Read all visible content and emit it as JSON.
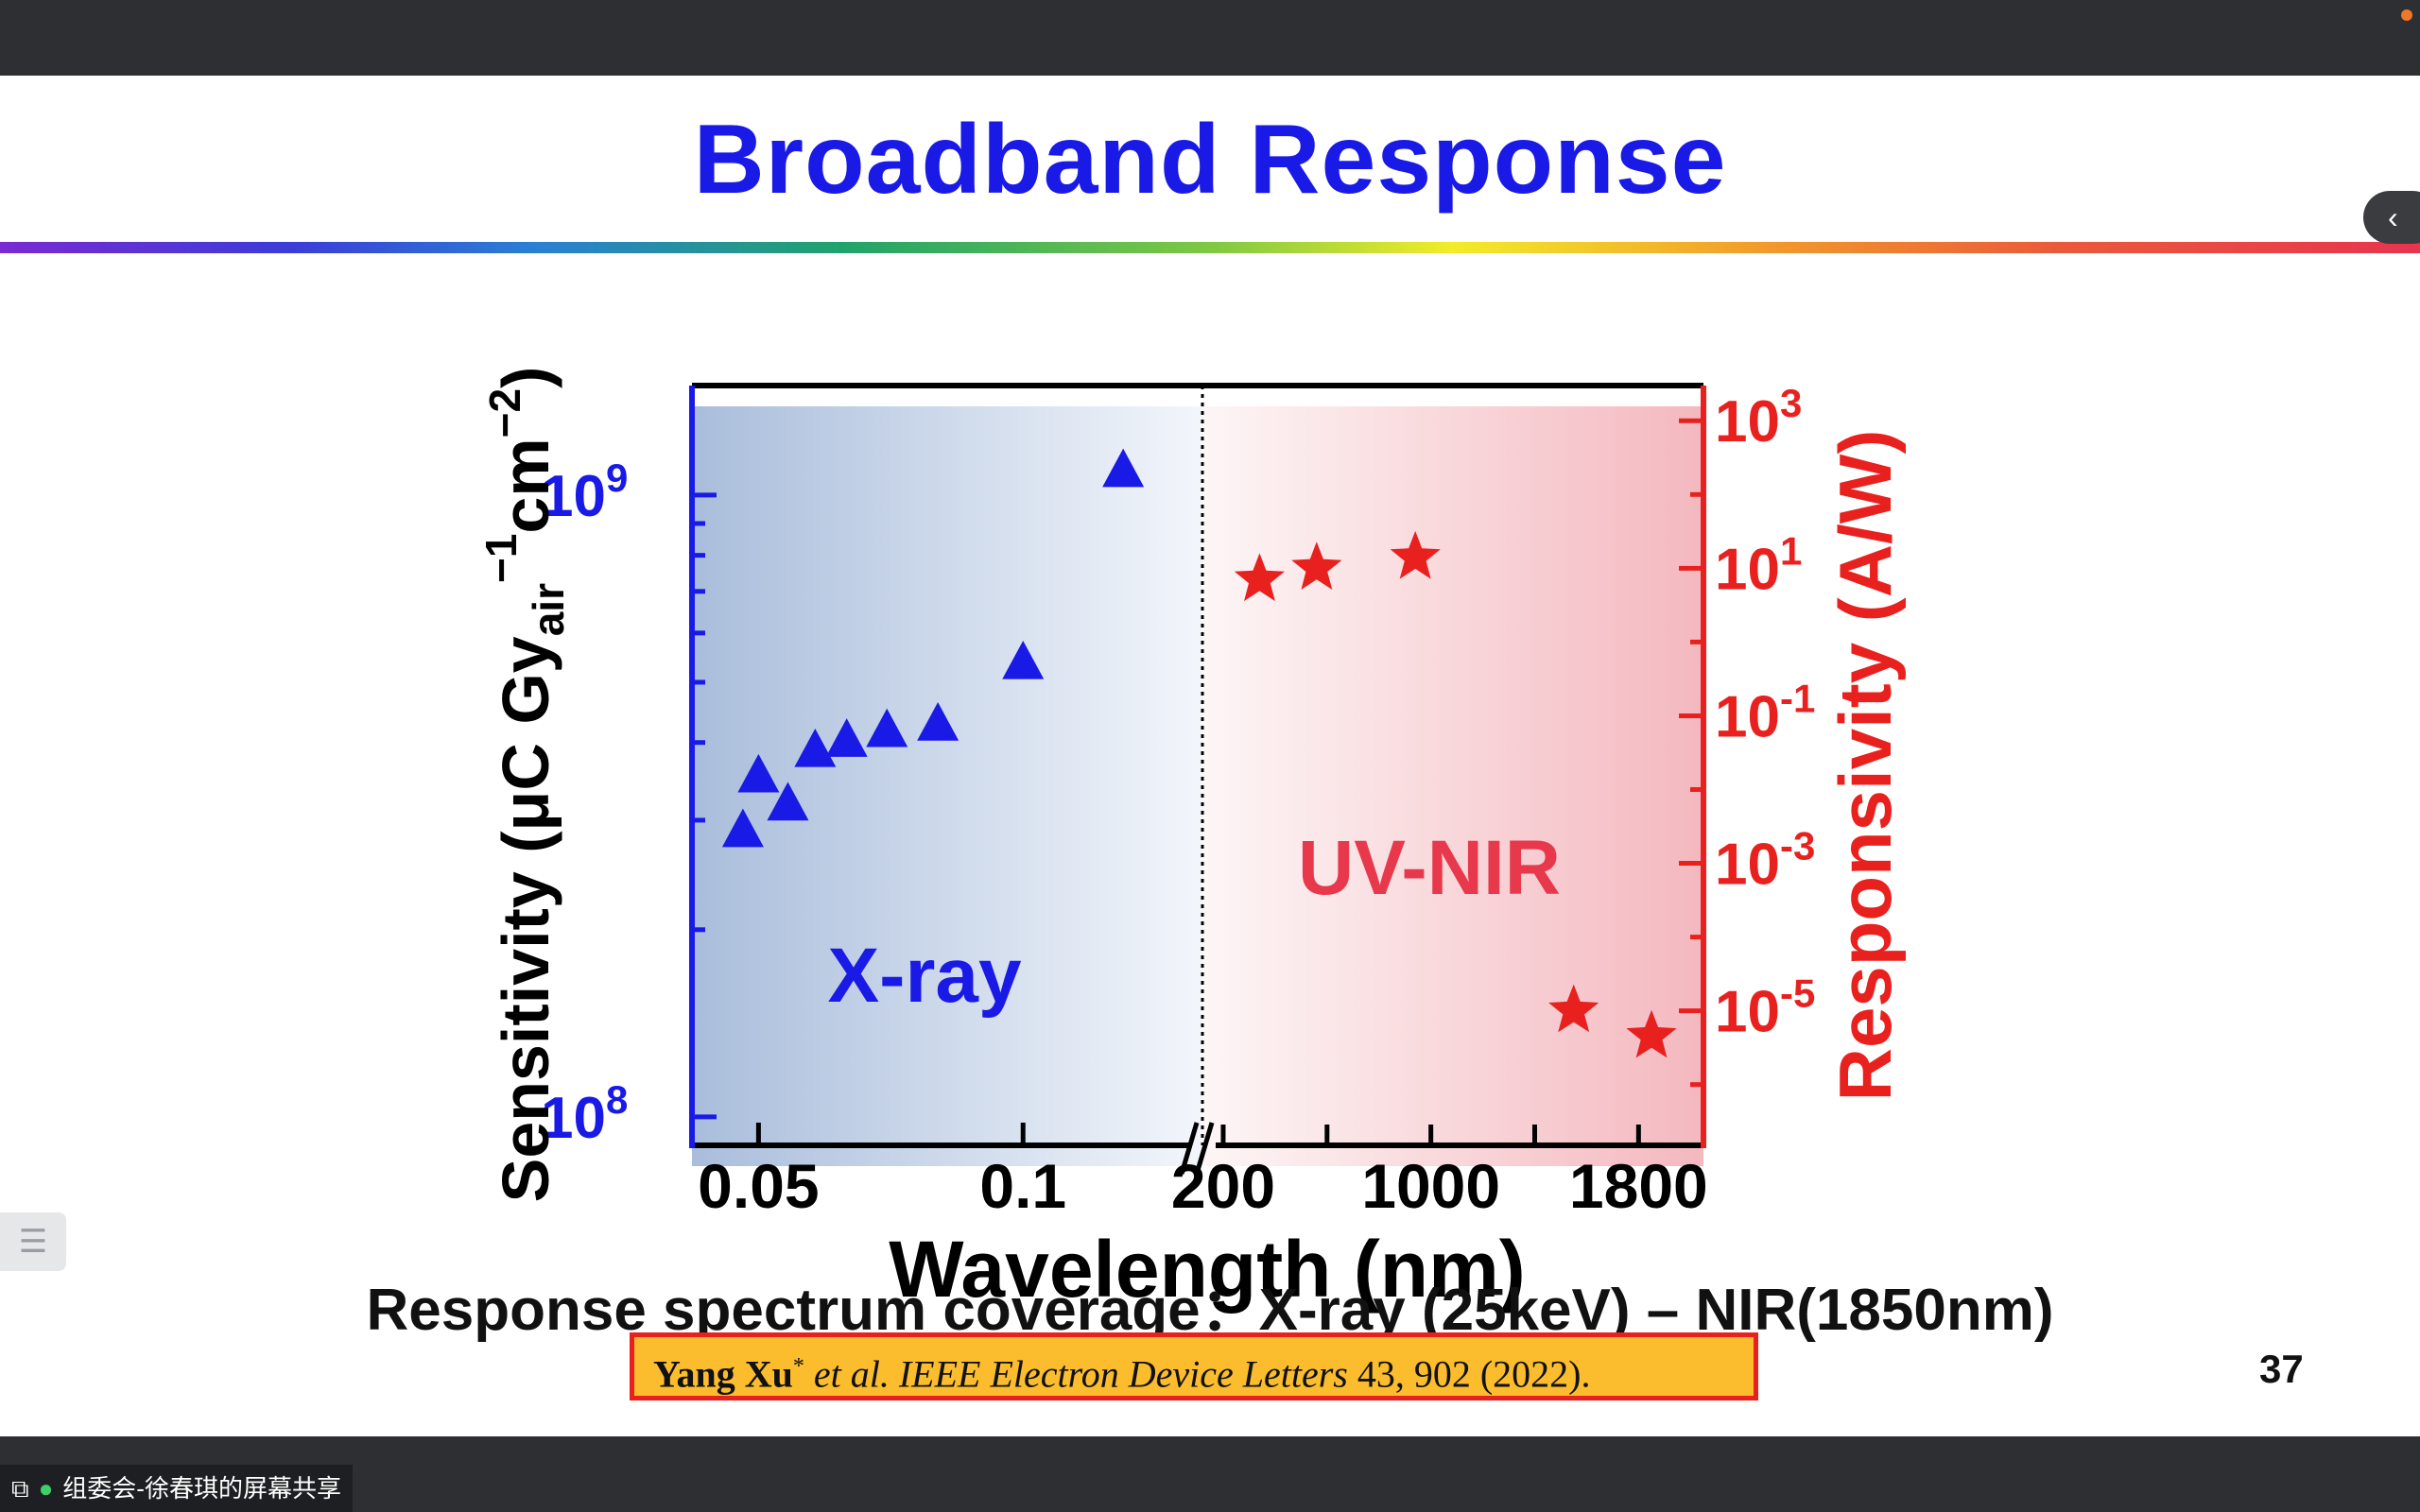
{
  "slide": {
    "title": "Broadband Response",
    "caption": "Response spectrum coverage：X-ray (25keV) – NIR(1850nm)",
    "reference": {
      "author": "Yang Xu",
      "star": "*",
      "rest_italic": " et al.  IEEE Electron Device Letters",
      "rest_plain": " 43, 902 (2022)."
    },
    "page_number": "37"
  },
  "screen_share": {
    "label": "组委会-徐春琪的屏幕共享"
  },
  "colors": {
    "title": "#1a1ae6",
    "left_axis": "#1a1ae6",
    "right_axis": "#e8211f"
  },
  "icons": {
    "share": "screen-share-icon",
    "mic": "microphone-icon",
    "side": "chevron-left-icon",
    "list": "list-icon"
  },
  "chart_data": {
    "type": "scatter",
    "xlabel": "Wavelength (nm)",
    "ylabel_left": "Sensitivity (μC Gyair−1cm−2)",
    "ylabel_right": "Responsivity (A/W)",
    "x_tick_labels": [
      "0.05",
      "0.1",
      "200",
      "1000",
      "1800"
    ],
    "left_axis": {
      "scale": "log",
      "ylim": [
        90000000,
        1500000000
      ],
      "tick_labels": [
        "10^9",
        "10^8"
      ]
    },
    "right_axis": {
      "scale": "log",
      "ylim": [
        1.5e-07,
        3000
      ],
      "tick_labels": [
        "10^3",
        "10^1",
        "10^-1",
        "10^-3",
        "10^-5"
      ]
    },
    "region_labels": [
      "X-ray",
      "UV-NIR"
    ],
    "broken_x_axis": true,
    "series": [
      {
        "axis": "left",
        "marker": "triangle",
        "color": "#1a1ae6",
        "points": [
          {
            "x": 0.048,
            "y": 290000000
          },
          {
            "x": 0.05,
            "y": 355000000
          },
          {
            "x": 0.054,
            "y": 320000000
          },
          {
            "x": 0.058,
            "y": 390000000
          },
          {
            "x": 0.063,
            "y": 405000000
          },
          {
            "x": 0.07,
            "y": 420000000
          },
          {
            "x": 0.08,
            "y": 430000000
          },
          {
            "x": 0.1,
            "y": 540000000
          },
          {
            "x": 0.13,
            "y": 1100000000
          }
        ]
      },
      {
        "axis": "right",
        "marker": "star",
        "color": "#e8211f",
        "points": [
          {
            "x": 340,
            "y": 7
          },
          {
            "x": 560,
            "y": 10
          },
          {
            "x": 940,
            "y": 14
          },
          {
            "x": 1550,
            "y": 1e-05
          },
          {
            "x": 1850,
            "y": 4.5e-06
          }
        ]
      }
    ]
  }
}
